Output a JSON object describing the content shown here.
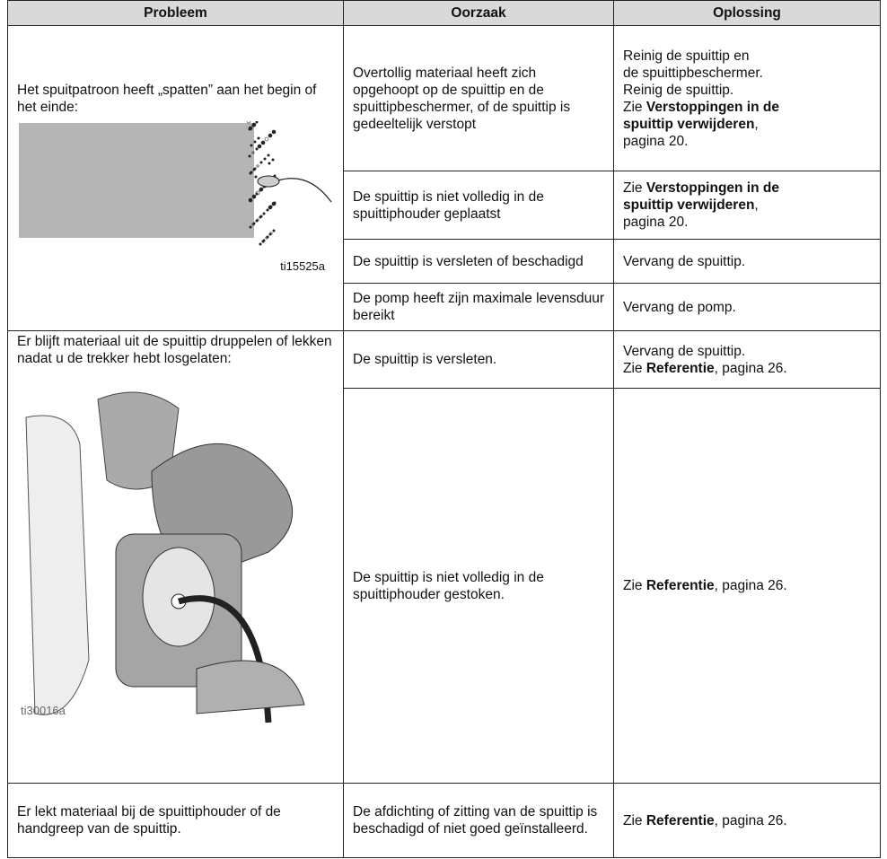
{
  "table": {
    "header": [
      "Probleem",
      "Oorzaak",
      "Oplossing"
    ],
    "rows": [
      {
        "problem": {
          "text": "Het spuitpatroon heeft „spatten” aan het begin of het einde:",
          "figure_label": "ti15525a"
        },
        "causes": [
          {
            "cause": "Overtollig materiaal heeft zich opgehoopt op de spuittip en de spuittipbeschermer, of de spuittip is gedeeltelijk verstopt",
            "solution": [
              [
                {
                  "text": "Reinig de spuittip en"
                }
              ],
              [
                {
                  "text": "de spuittipbeschermer."
                }
              ],
              [
                {
                  "text": "Reinig de spuittip."
                }
              ],
              [
                {
                  "text": "Zie "
                },
                {
                  "text": "Verstoppingen in de spuittip verwijderen",
                  "bold": true
                },
                {
                  "text": ", pagina 20."
                }
              ]
            ]
          },
          {
            "cause": "De spuittip is niet volledig in de spuittiphouder geplaatst",
            "solution": [
              [
                {
                  "text": "Zie "
                },
                {
                  "text": "Verstoppingen in de spuittip verwijderen",
                  "bold": true
                },
                {
                  "text": ", pagina 20."
                }
              ]
            ]
          },
          {
            "cause": "De spuittip is versleten of beschadigd",
            "solution": [
              [
                {
                  "text": "Vervang de spuittip."
                }
              ]
            ]
          },
          {
            "cause": "De pomp heeft zijn maximale levensduur bereikt",
            "solution": [
              [
                {
                  "text": "Vervang de pomp."
                }
              ]
            ]
          }
        ]
      },
      {
        "problem": {
          "text": "Er blijft materiaal uit de spuittip druppelen of lekken nadat u de trekker hebt losgelaten:",
          "figure_label": "ti30016a"
        },
        "causes": [
          {
            "cause": "De spuittip is versleten.",
            "solution": [
              [
                {
                  "text": "Vervang de spuittip."
                }
              ],
              [
                {
                  "text": "Zie "
                },
                {
                  "text": "Referentie",
                  "bold": true
                },
                {
                  "text": ", pagina 26."
                }
              ]
            ]
          },
          {
            "cause": "De spuittip is niet volledig in de spuittiphouder gestoken.",
            "solution": [
              [
                {
                  "text": "Zie "
                },
                {
                  "text": "Referentie",
                  "bold": true
                },
                {
                  "text": ", pagina 26."
                }
              ]
            ]
          }
        ]
      },
      {
        "problem": {
          "text": "Er lekt materiaal bij de spuittiphouder of de handgreep van de spuittip."
        },
        "causes": [
          {
            "cause": "De afdichting of zitting van de spuittip is beschadigd of niet goed geïnstalleerd.",
            "solution": [
              [
                {
                  "text": "Zie "
                },
                {
                  "text": "Referentie",
                  "bold": true
                },
                {
                  "text": ", pagina 26."
                }
              ]
            ]
          }
        ]
      }
    ]
  }
}
